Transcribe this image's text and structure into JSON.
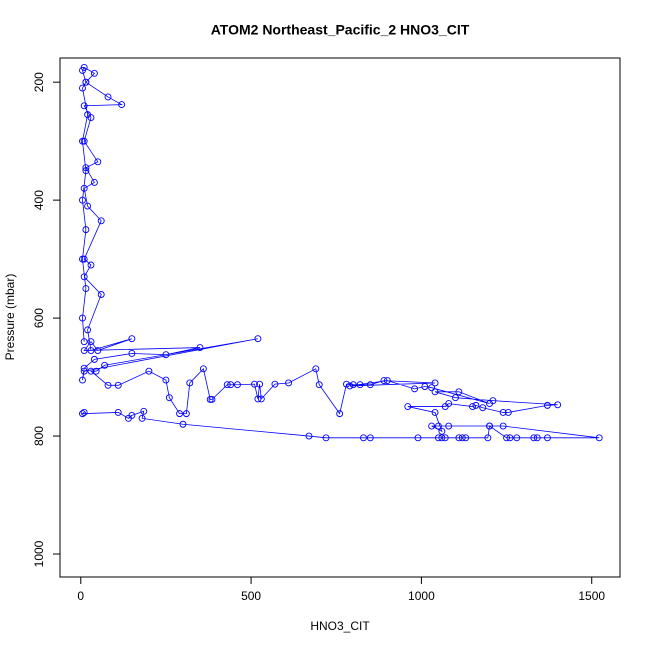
{
  "chart_data": {
    "type": "line",
    "title": "ATOM2 Northeast_Pacific_2 HNO3_CIT",
    "x_label": "HNO3_CIT",
    "y_label": "Pressure (mbar)",
    "xlim": [
      -61,
      1583
    ],
    "ylim": [
      1039,
      159
    ],
    "xticks": [
      0,
      500,
      1000,
      1500
    ],
    "yticks": [
      200,
      400,
      600,
      800,
      1000
    ],
    "series": [
      {
        "color": "#0000ff",
        "x": [
          10,
          5,
          110,
          140,
          150,
          185,
          180,
          300,
          670,
          720,
          830,
          850,
          990,
          1050,
          1060,
          1070,
          1110,
          1120,
          1130,
          1195,
          1200,
          1250,
          1260,
          1280,
          1330,
          1340,
          1370,
          1522,
          1240,
          1200,
          1080,
          1050,
          1030,
          1060,
          1040,
          960,
          1070,
          1080,
          1150,
          1160,
          1180,
          1240,
          1255,
          1370,
          1400,
          1210,
          1100,
          1040,
          1110,
          1200,
          1030,
          1010,
          980,
          900,
          790,
          1040,
          890,
          850,
          820,
          800,
          780,
          760,
          700,
          690,
          610,
          570,
          530,
          525,
          520,
          510,
          460,
          440,
          430,
          385,
          380,
          360,
          320,
          310,
          290,
          260,
          250,
          200,
          110,
          80,
          30,
          45,
          70,
          520,
          10,
          5,
          10,
          40,
          150,
          250,
          350,
          10,
          30,
          50,
          150,
          30,
          20,
          60,
          10,
          30,
          10,
          60,
          20,
          10,
          40,
          15,
          50,
          10,
          30,
          10,
          120,
          80,
          15,
          40,
          10,
          5,
          15,
          5,
          20,
          5,
          15,
          5,
          15,
          5,
          15,
          5,
          10
        ],
        "values": [
          760,
          762,
          760,
          770,
          765,
          758,
          770,
          780,
          800,
          803,
          803,
          803,
          803,
          803,
          803,
          803,
          803,
          803,
          803,
          803,
          783,
          803,
          803,
          803,
          803,
          803,
          803,
          803,
          783,
          783,
          783,
          783,
          783,
          792,
          760,
          750,
          750,
          745,
          750,
          748,
          752,
          760,
          760,
          748,
          747,
          740,
          735,
          725,
          725,
          745,
          718,
          716,
          720,
          706,
          715,
          710,
          706,
          713,
          713,
          713,
          712,
          762,
          713,
          686,
          710,
          712,
          737,
          712,
          737,
          712,
          713,
          713,
          713,
          738,
          738,
          686,
          710,
          762,
          762,
          735,
          705,
          690,
          714,
          714,
          690,
          690,
          680,
          635,
          690,
          705,
          685,
          670,
          660,
          662,
          650,
          655,
          640,
          655,
          635,
          655,
          620,
          560,
          530,
          510,
          500,
          435,
          410,
          380,
          370,
          345,
          335,
          300,
          260,
          240,
          238,
          225,
          200,
          185,
          175,
          180,
          200,
          210,
          255,
          300,
          350,
          400,
          450,
          500,
          550,
          600,
          640
        ]
      }
    ]
  }
}
